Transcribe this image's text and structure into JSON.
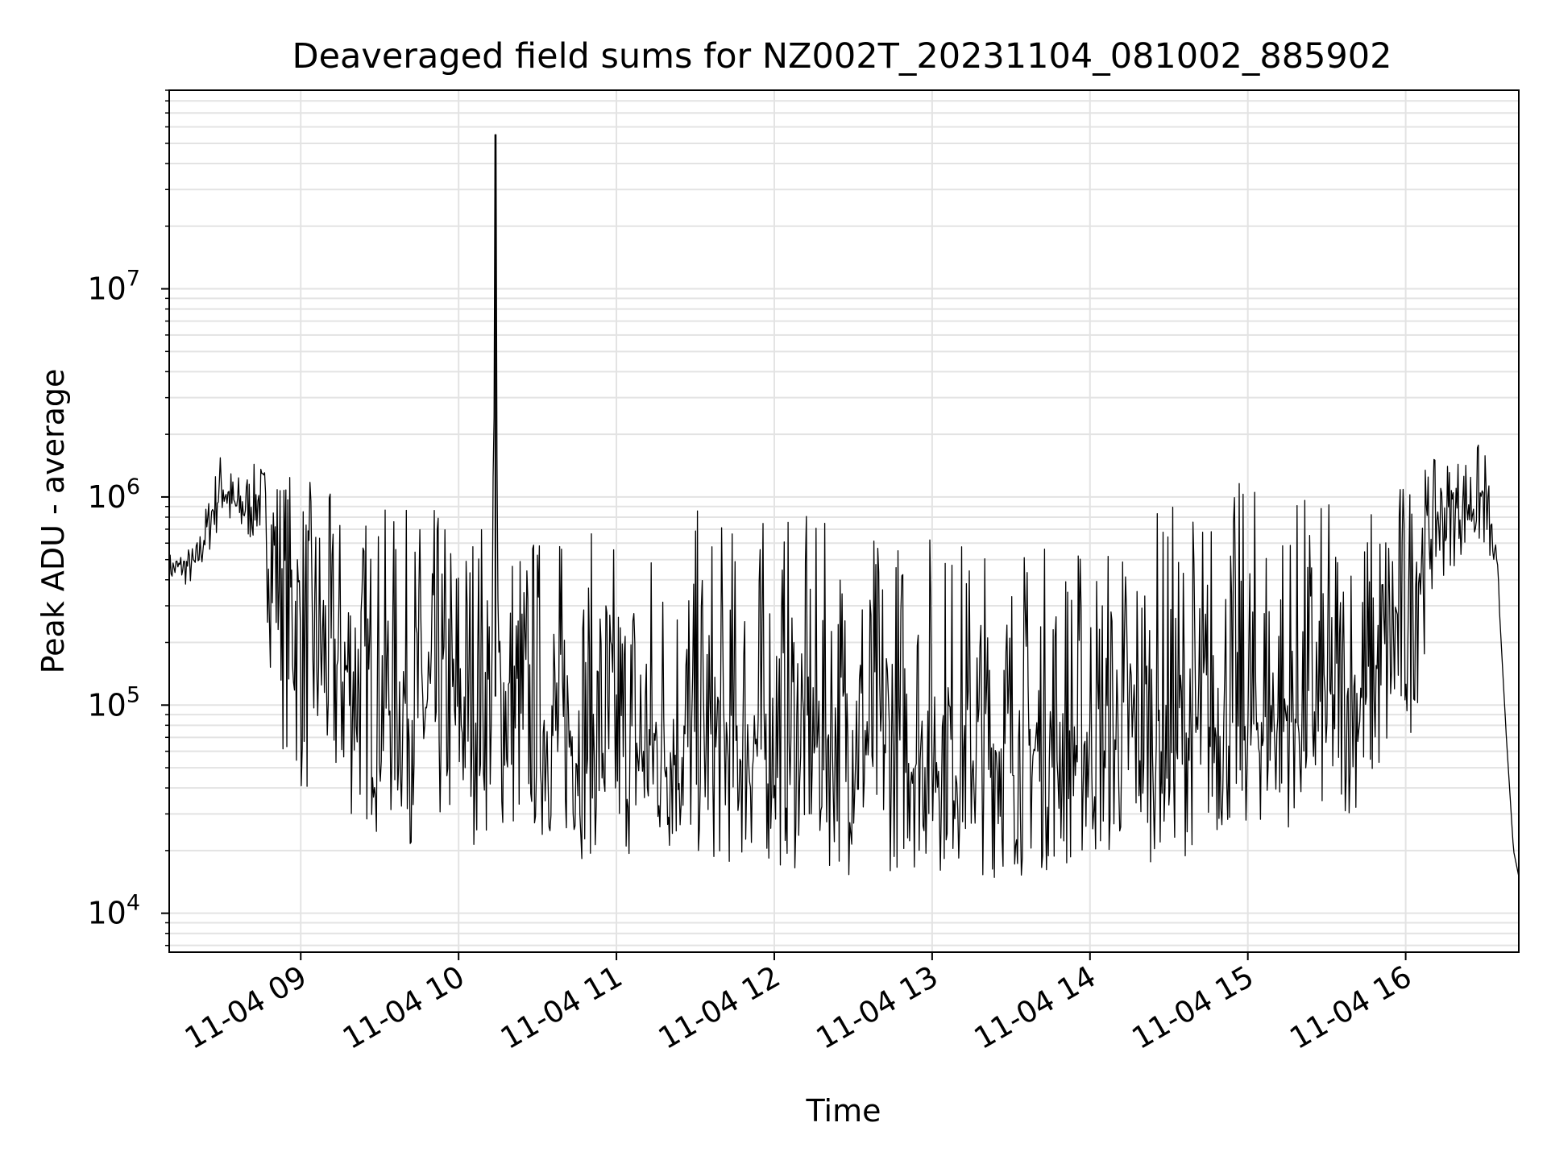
{
  "chart_data": {
    "type": "line",
    "title": "Deaveraged field sums for NZ002T_20231104_081002_885902",
    "xlabel": "Time",
    "ylabel": "Peak ADU - average",
    "x_range": [
      "2023-11-04 08:10",
      "2023-11-04 16:43"
    ],
    "x_ticks": [
      "11-04 09",
      "11-04 10",
      "11-04 11",
      "11-04 12",
      "11-04 13",
      "11-04 14",
      "11-04 15",
      "11-04 16"
    ],
    "y_scale": "log",
    "ylim": [
      6500,
      90000000
    ],
    "y_ticks": [
      {
        "value": 10000,
        "base": "10",
        "exp": "4"
      },
      {
        "value": 100000,
        "base": "10",
        "exp": "5"
      },
      {
        "value": 1000000,
        "base": "10",
        "exp": "6"
      },
      {
        "value": 10000000,
        "base": "10",
        "exp": "7"
      }
    ],
    "grid": true,
    "line_color": "#000000",
    "series": [
      {
        "x": [
          "2023-11-04 08:10",
          "2023-11-04 08:20",
          "2023-11-04 08:30",
          "2023-11-04 08:35",
          "2023-11-04 08:45",
          "2023-11-04 08:50",
          "2023-11-04 09:00",
          "2023-11-04 09:15",
          "2023-11-04 09:30",
          "2023-11-04 09:45",
          "2023-11-04 10:00",
          "2023-11-04 10:13",
          "2023-11-04 10:14",
          "2023-11-04 10:15",
          "2023-11-04 10:30",
          "2023-11-04 10:45",
          "2023-11-04 11:00",
          "2023-11-04 11:15",
          "2023-11-04 11:30",
          "2023-11-04 11:45",
          "2023-11-04 12:00",
          "2023-11-04 12:15",
          "2023-11-04 12:30",
          "2023-11-04 12:45",
          "2023-11-04 13:00",
          "2023-11-04 13:15",
          "2023-11-04 13:30",
          "2023-11-04 13:45",
          "2023-11-04 14:00",
          "2023-11-04 14:15",
          "2023-11-04 14:30",
          "2023-11-04 14:45",
          "2023-11-04 15:00",
          "2023-11-04 15:15",
          "2023-11-04 15:30",
          "2023-11-04 15:45",
          "2023-11-04 16:00",
          "2023-11-04 16:10",
          "2023-11-04 16:20",
          "2023-11-04 16:30",
          "2023-11-04 16:35",
          "2023-11-04 16:38",
          "2023-11-04 16:41",
          "2023-11-04 16:43"
        ],
        "y": [
          450000,
          480000,
          1200000,
          900000,
          1000000,
          600000,
          250000,
          150000,
          120000,
          100000,
          90000,
          120000,
          55000000,
          110000,
          80000,
          70000,
          60000,
          60000,
          65000,
          60000,
          70000,
          70000,
          75000,
          65000,
          60000,
          60000,
          60000,
          60000,
          65000,
          70000,
          70000,
          75000,
          80000,
          90000,
          95000,
          110000,
          300000,
          800000,
          900000,
          1000000,
          400000,
          80000,
          20000,
          15000
        ],
        "y_low": [
          380000,
          350000,
          700000,
          500000,
          600000,
          80000,
          30000,
          25000,
          22000,
          20000,
          20000,
          22000,
          22000,
          20000,
          20000,
          18000,
          17000,
          16000,
          16000,
          15000,
          15000,
          15000,
          15000,
          15000,
          15000,
          15000,
          14000,
          15000,
          15000,
          17000,
          18000,
          20000,
          23000,
          25000,
          25000,
          30000,
          40000,
          300000,
          500000,
          500000,
          400000,
          80000,
          20000,
          15000
        ],
        "y_high": [
          550000,
          600000,
          1800000,
          1300000,
          1500000,
          1600000,
          1300000,
          1000000,
          900000,
          900000,
          1000000,
          1000000,
          55000000,
          900000,
          800000,
          700000,
          700000,
          800000,
          900000,
          800000,
          900000,
          800000,
          700000,
          800000,
          800000,
          700000,
          650000,
          650000,
          700000,
          800000,
          1000000,
          1100000,
          1300000,
          1200000,
          1000000,
          1000000,
          1400000,
          1500000,
          1700000,
          1900000,
          500000,
          80000,
          20000,
          15000
        ]
      }
    ]
  }
}
